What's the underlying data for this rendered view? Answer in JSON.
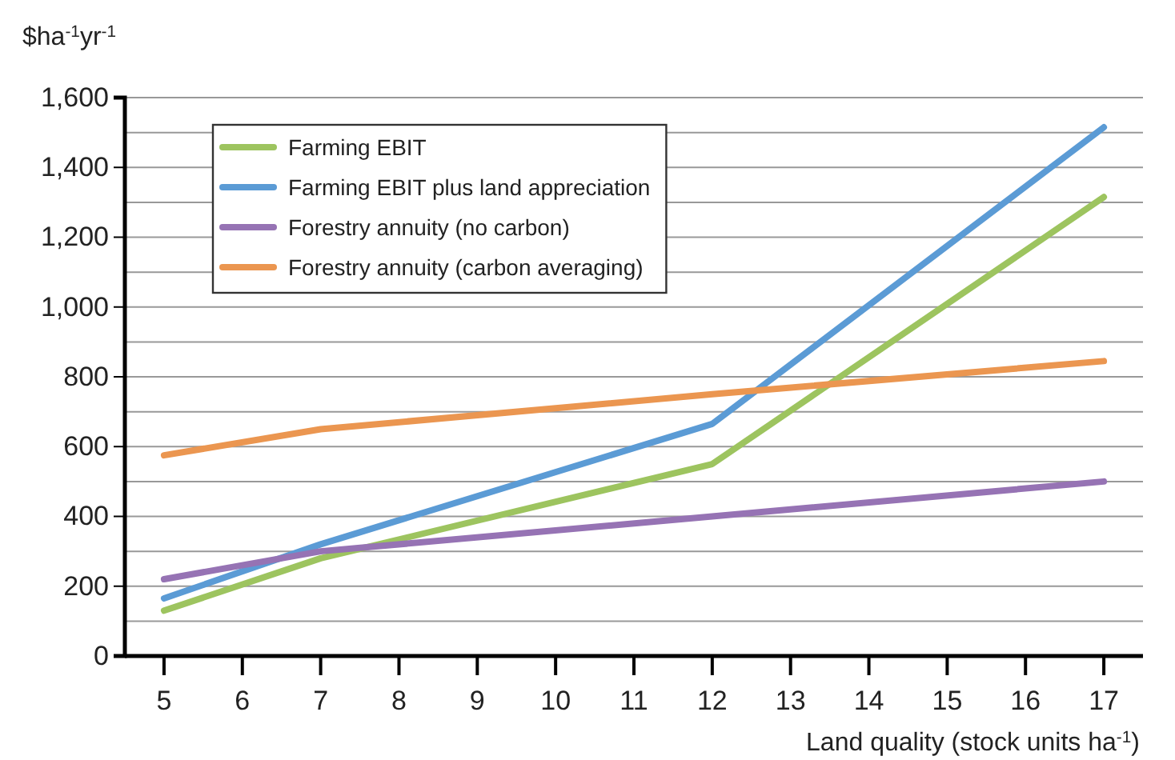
{
  "chart_data": {
    "type": "line",
    "ylabel": "$ha$^{-1}$yr$^{-1}$",
    "xlabel": "Land quality (stock units ha$^{-1}$)",
    "x": [
      5,
      7,
      12,
      17
    ],
    "series": [
      {
        "name": "Farming EBIT",
        "color": "#9dc45f",
        "values": [
          130,
          280,
          550,
          1315
        ]
      },
      {
        "name": "Farming EBIT plus land appreciation",
        "color": "#5b9bd5",
        "values": [
          165,
          320,
          665,
          1515
        ]
      },
      {
        "name": "Forestry annuity (no carbon)",
        "color": "#9673b4",
        "values": [
          220,
          300,
          400,
          500
        ]
      },
      {
        "name": "Forestry annuity (carbon averaging)",
        "color": "#eb9650",
        "values": [
          575,
          650,
          750,
          845
        ]
      }
    ],
    "xlim": [
      4.5,
      17.5
    ],
    "xticks": [
      5,
      6,
      7,
      8,
      9,
      10,
      11,
      12,
      13,
      14,
      15,
      16,
      17
    ],
    "ylim": [
      0,
      1600
    ],
    "yticks": [
      0,
      {
        "value": 100,
        "label": null
      },
      {
        "value": 200,
        "label": "200"
      },
      {
        "value": 300,
        "label": null
      },
      {
        "value": 400,
        "label": "400"
      },
      {
        "value": 500,
        "label": null
      },
      {
        "value": 600,
        "label": "600"
      },
      {
        "value": 700,
        "label": null
      },
      {
        "value": 800,
        "label": "800"
      },
      {
        "value": 900,
        "label": null
      },
      {
        "value": 1000,
        "label": "1,000"
      },
      {
        "value": 1100,
        "label": null
      },
      {
        "value": 1200,
        "label": "1,200"
      },
      {
        "value": 1300,
        "label": null
      },
      {
        "value": 1400,
        "label": "1,400"
      },
      {
        "value": 1500,
        "label": null
      },
      {
        "value": 1600,
        "label": "1,600"
      }
    ],
    "grid": "y",
    "legend": "top left",
    "marker": "none",
    "line_style": "solid"
  }
}
